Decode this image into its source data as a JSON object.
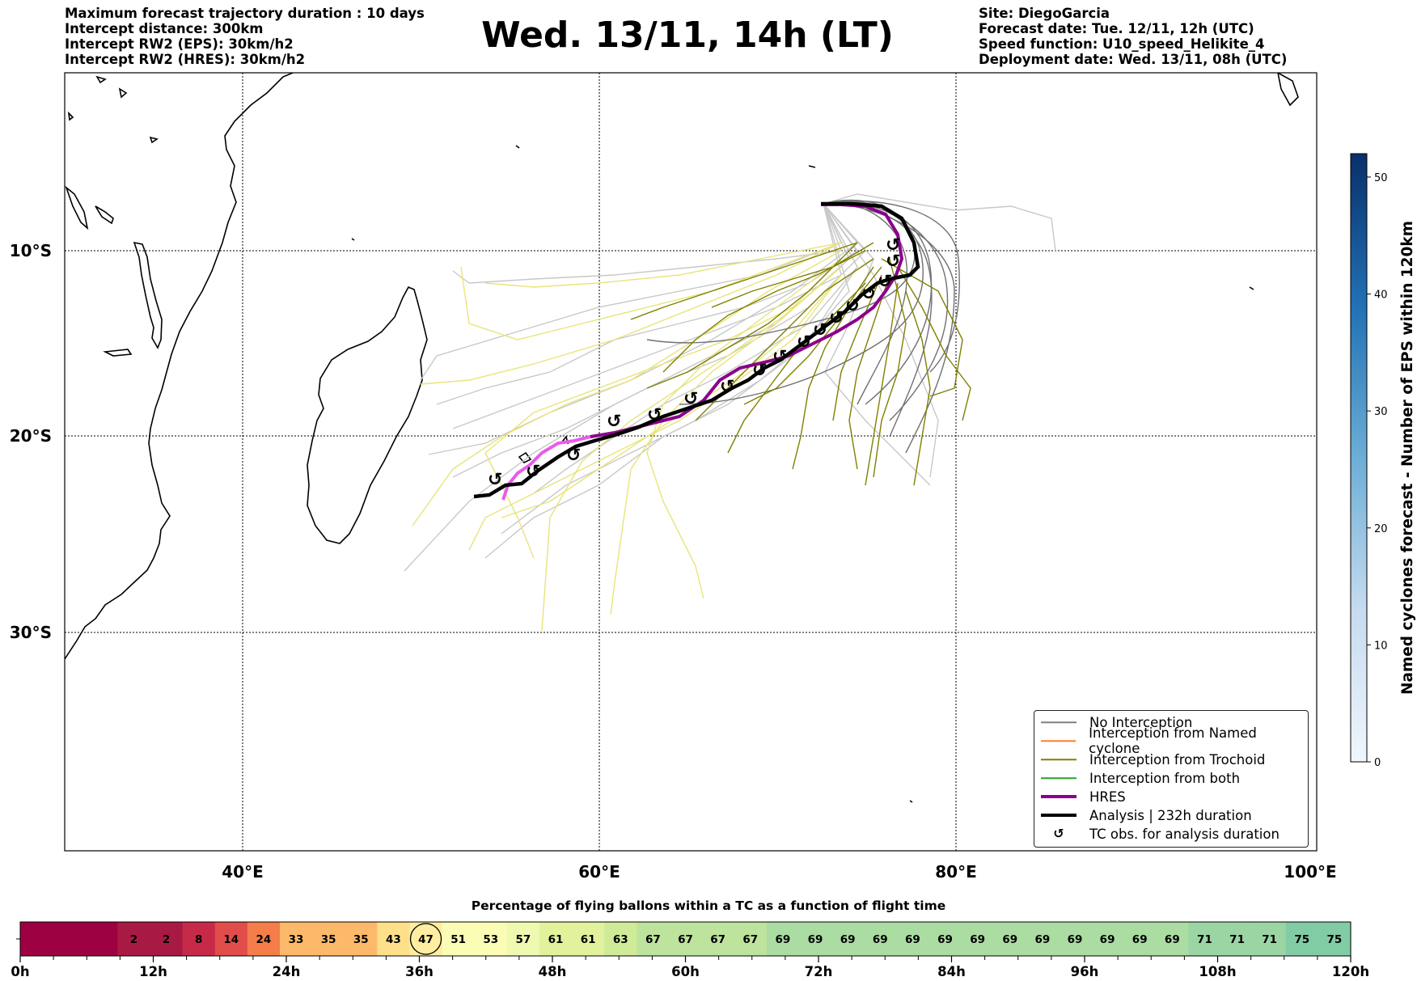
{
  "header_left": [
    "Maximum forecast trajectory duration : 10 days",
    "Intercept distance: 300km",
    "Intercept RW2 (EPS):  30km/h2",
    "Intercept RW2 (HRES): 30km/h2"
  ],
  "title": "Wed. 13/11, 14h (LT)",
  "header_right": [
    "Site: DiegoGarcia",
    "Forecast date: Tue. 12/11, 12h (UTC)",
    "Speed function: U10_speed_Helikite_4",
    "Deployment date: Wed. 13/11, 08h (UTC)"
  ],
  "map": {
    "lon_range": [
      30,
      100
    ],
    "lat_range": [
      -43,
      -1
    ],
    "lon_ticks": [
      "40°E",
      "60°E",
      "80°E",
      "100°E"
    ],
    "lat_ticks": [
      "10°S",
      "20°S",
      "30°S"
    ],
    "grid": true
  },
  "legend": {
    "items": [
      {
        "label": "No Interception",
        "color": "#808080"
      },
      {
        "label": "Interception from Named cyclone",
        "color": "#ff7f2a"
      },
      {
        "label": "Interception from Trochoid",
        "color": "#808000"
      },
      {
        "label": "Interception from both",
        "color": "#2ca02c"
      },
      {
        "label": "HRES",
        "color": "#8b008b"
      },
      {
        "label": "Analysis | 232h duration",
        "color": "#000000"
      },
      {
        "label": "TC obs. for analysis duration",
        "color": "#000000",
        "icon": "cyclone-symbol-icon"
      }
    ],
    "placement": "lower-right"
  },
  "colorbar": {
    "label": "Named cyclones forecast - Number of EPS within 120km",
    "range": [
      0,
      52
    ],
    "ticks": [
      "0",
      "10",
      "20",
      "30",
      "40",
      "50"
    ],
    "colors": [
      "#f0f6fd",
      "#c6dbef",
      "#6baed6",
      "#2171b5",
      "#08306b"
    ]
  },
  "percentage_bar": {
    "title": "Percentage of flying ballons within a TC as a function of flight time",
    "values": [
      "",
      "",
      "",
      "2",
      "2",
      "8",
      "14",
      "24",
      "33",
      "35",
      "35",
      "43",
      "47",
      "51",
      "53",
      "57",
      "61",
      "61",
      "63",
      "67",
      "67",
      "67",
      "67",
      "69",
      "69",
      "69",
      "69",
      "69",
      "69",
      "69",
      "69",
      "69",
      "69",
      "69",
      "69",
      "69",
      "71",
      "71",
      "71",
      "75",
      "75"
    ],
    "current_index": 12,
    "tick_labels": [
      "0h",
      "12h",
      "24h",
      "36h",
      "48h",
      "60h",
      "72h",
      "84h",
      "96h",
      "108h",
      "120h"
    ]
  }
}
